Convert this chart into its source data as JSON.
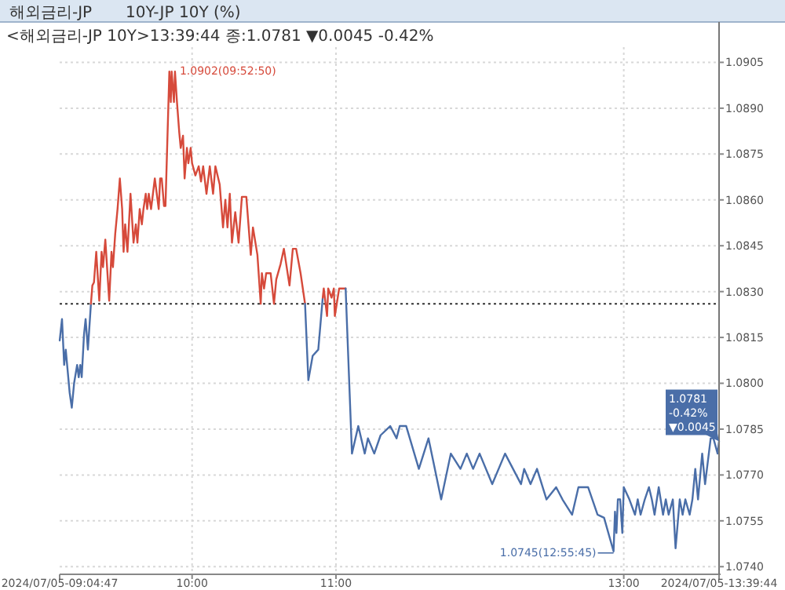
{
  "chart_data": {
    "type": "line",
    "title": "해외금리-JP",
    "subtitle": "10Y-JP 10Y (%)",
    "annotations": [
      "<해외금리-JP 10Y>13:39:44 종:1.0781 ▼0.0045 -0.42%",
      {
        "text": "1.0902(09:52:50)",
        "x": 9.881,
        "y": 1.0902
      },
      {
        "text": "1.0745(12:55:45)",
        "x": 12.929,
        "y": 1.0745
      },
      "1.0781",
      "-0.42%",
      "▼0.0045"
    ],
    "xlim": [
      9.0797,
      13.6622
    ],
    "ylim": [
      1.07375,
      1.091
    ],
    "xticks": [
      {
        "value": 9.0797,
        "label": "2024/07/05-09:04:47"
      },
      {
        "value": 10,
        "label": "10:00"
      },
      {
        "value": 11,
        "label": "11:00"
      },
      {
        "value": 13,
        "label": "13:00"
      },
      {
        "value": 13.6622,
        "label": "2024/07/05-13:39:44"
      }
    ],
    "yticks": [
      {
        "value": 1.074,
        "label": "1.0740"
      },
      {
        "value": 1.0755,
        "label": "1.0755"
      },
      {
        "value": 1.077,
        "label": "1.0770"
      },
      {
        "value": 1.0785,
        "label": "1.0785"
      },
      {
        "value": 1.08,
        "label": "1.0800"
      },
      {
        "value": 1.0815,
        "label": "1.0815"
      },
      {
        "value": 1.083,
        "label": "1.0830"
      },
      {
        "value": 1.0845,
        "label": "1.0845"
      },
      {
        "value": 1.086,
        "label": "1.0860"
      },
      {
        "value": 1.0875,
        "label": "1.0875"
      },
      {
        "value": 1.089,
        "label": "1.0890"
      },
      {
        "value": 1.0905,
        "label": "1.0905"
      }
    ],
    "grid": true,
    "marker": "none",
    "line_style": "solid",
    "ref_lines": [
      {
        "axis": "y",
        "value": 1.0826,
        "color": "#333333",
        "line_style": "dotted"
      }
    ],
    "series": [
      {
        "color": "#4a6ea8",
        "x": [
          9.08,
          9.096,
          9.111,
          9.122,
          9.149,
          9.164,
          9.18,
          9.201,
          9.212,
          9.223,
          9.233,
          9.249,
          9.26,
          9.276,
          9.297
        ],
        "values": [
          1.0814,
          1.0821,
          1.0806,
          1.0811,
          1.0797,
          1.0792,
          1.08,
          1.0806,
          1.0802,
          1.0806,
          1.0802,
          1.0816,
          1.0821,
          1.0811,
          1.0826
        ]
      },
      {
        "color": "#d64a3b",
        "x": [
          9.297,
          9.307,
          9.318,
          9.334,
          9.355,
          9.371,
          9.381,
          9.397,
          9.424,
          9.44,
          9.45,
          9.466,
          9.482,
          9.498,
          9.514,
          9.524,
          9.535,
          9.551,
          9.572,
          9.593,
          9.609,
          9.62,
          9.636,
          9.651,
          9.662,
          9.678,
          9.688,
          9.699,
          9.715,
          9.741,
          9.752,
          9.768,
          9.778,
          9.789,
          9.805,
          9.815,
          9.842,
          9.852,
          9.858,
          9.874,
          9.881,
          9.895,
          9.911,
          9.921,
          9.937,
          9.948,
          9.964,
          9.974,
          9.99,
          10.0,
          10.023,
          10.046,
          10.062,
          10.077,
          10.1,
          10.123,
          10.146,
          10.162,
          10.192,
          10.215,
          10.231,
          10.246,
          10.262,
          10.277,
          10.3,
          10.323,
          10.346,
          10.377,
          10.408,
          10.423,
          10.454,
          10.477,
          10.485,
          10.5,
          10.515,
          10.546,
          10.569,
          10.585,
          10.615,
          10.638,
          10.677,
          10.7,
          10.723,
          10.754,
          10.785
        ],
        "values": [
          1.0826,
          1.0832,
          1.0833,
          1.0843,
          1.0827,
          1.0843,
          1.0838,
          1.0847,
          1.0827,
          1.0843,
          1.0838,
          1.0849,
          1.0857,
          1.0867,
          1.0857,
          1.0843,
          1.0852,
          1.0843,
          1.0862,
          1.0846,
          1.0852,
          1.0846,
          1.0857,
          1.0852,
          1.0857,
          1.0862,
          1.0857,
          1.0862,
          1.0857,
          1.0867,
          1.0863,
          1.0857,
          1.0867,
          1.0867,
          1.0858,
          1.0858,
          1.0902,
          1.0892,
          1.0902,
          1.0892,
          1.0902,
          1.0892,
          1.0882,
          1.0877,
          1.0881,
          1.0867,
          1.0877,
          1.0872,
          1.0877,
          1.0872,
          1.0868,
          1.0871,
          1.0866,
          1.0871,
          1.0862,
          1.0871,
          1.0862,
          1.0871,
          1.0865,
          1.0851,
          1.086,
          1.0851,
          1.0862,
          1.0846,
          1.0856,
          1.0846,
          1.0861,
          1.0861,
          1.0842,
          1.0851,
          1.0842,
          1.0826,
          1.0836,
          1.0831,
          1.0836,
          1.0836,
          1.0826,
          1.0834,
          1.0839,
          1.0844,
          1.0832,
          1.0844,
          1.0844,
          1.0836,
          1.0826
        ]
      },
      {
        "color": "#4a6ea8",
        "x": [
          10.785,
          10.808,
          10.838,
          10.877,
          10.908
        ],
        "values": [
          1.0826,
          1.0801,
          1.0809,
          1.0811,
          1.0828
        ]
      },
      {
        "color": "#d64a3b",
        "x": [
          10.908,
          10.915,
          10.938,
          10.946,
          10.969,
          10.985,
          10.992,
          11.022,
          11.067
        ],
        "values": [
          1.0828,
          1.0831,
          1.0822,
          1.0831,
          1.0828,
          1.0831,
          1.0822,
          1.0831,
          1.0831
        ]
      },
      {
        "color": "#4a6ea8",
        "x": [
          11.067,
          11.111,
          11.155,
          11.2,
          11.222,
          11.266,
          11.31,
          11.377,
          11.421,
          11.443,
          11.488,
          11.576,
          11.643,
          11.731,
          11.798,
          11.865,
          11.909,
          11.953,
          11.998,
          12.086,
          12.175,
          12.286,
          12.308,
          12.352,
          12.397,
          12.463,
          12.53,
          12.574,
          12.641,
          12.685,
          12.752,
          12.818,
          12.863,
          12.929,
          12.939,
          12.949,
          12.959,
          12.975,
          12.99,
          13.0,
          13.039,
          13.078,
          13.097,
          13.117,
          13.146,
          13.175,
          13.195,
          13.214,
          13.243,
          13.273,
          13.292,
          13.312,
          13.341,
          13.36,
          13.389,
          13.409,
          13.428,
          13.458,
          13.477,
          13.497,
          13.516,
          13.545,
          13.565,
          13.604,
          13.623,
          13.652,
          13.662
        ],
        "values": [
          1.0831,
          1.0777,
          1.0786,
          1.0777,
          1.0782,
          1.0777,
          1.0783,
          1.0786,
          1.0782,
          1.0786,
          1.0786,
          1.0772,
          1.0782,
          1.0762,
          1.0777,
          1.0772,
          1.0777,
          1.0772,
          1.0777,
          1.0767,
          1.0777,
          1.0767,
          1.0772,
          1.0767,
          1.0772,
          1.0762,
          1.0766,
          1.0762,
          1.0757,
          1.0766,
          1.0766,
          1.0757,
          1.0756,
          1.0745,
          1.0758,
          1.0751,
          1.0762,
          1.0762,
          1.0751,
          1.0766,
          1.0762,
          1.0757,
          1.0762,
          1.0757,
          1.0762,
          1.0766,
          1.0762,
          1.0757,
          1.0766,
          1.0757,
          1.0762,
          1.0757,
          1.0762,
          1.0746,
          1.0762,
          1.0757,
          1.0762,
          1.0757,
          1.0762,
          1.0772,
          1.0762,
          1.0777,
          1.0767,
          1.0782,
          1.0782,
          1.0777,
          1.0781
        ]
      }
    ]
  }
}
